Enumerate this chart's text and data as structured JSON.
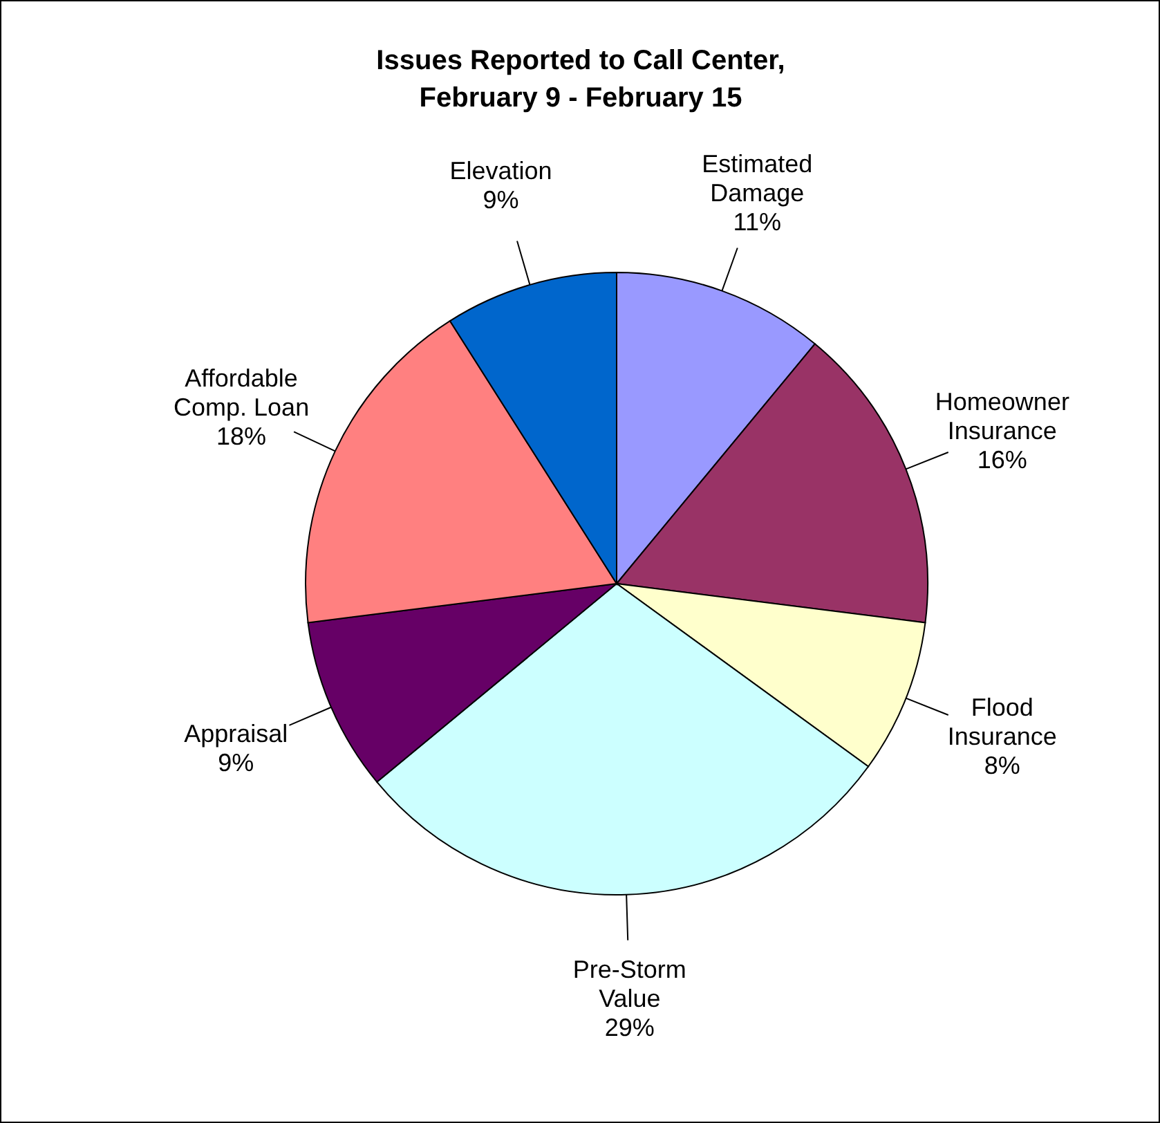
{
  "chart_data": {
    "type": "pie",
    "title": "Issues Reported to Call Center, February 9 - February 15",
    "categories": [
      "Estimated Damage",
      "Homeowner Insurance",
      "Flood Insurance",
      "Pre-Storm Value",
      "Appraisal",
      "Affordable Comp. Loan",
      "Elevation"
    ],
    "values": [
      11,
      16,
      8,
      29,
      9,
      18,
      9
    ],
    "value_labels": [
      "11%",
      "16%",
      "8%",
      "29%",
      "9%",
      "18%",
      "9%"
    ],
    "colors": [
      "#9999ff",
      "#993366",
      "#ffffcc",
      "#ccffff",
      "#660066",
      "#ff8080",
      "#0066cc"
    ]
  }
}
